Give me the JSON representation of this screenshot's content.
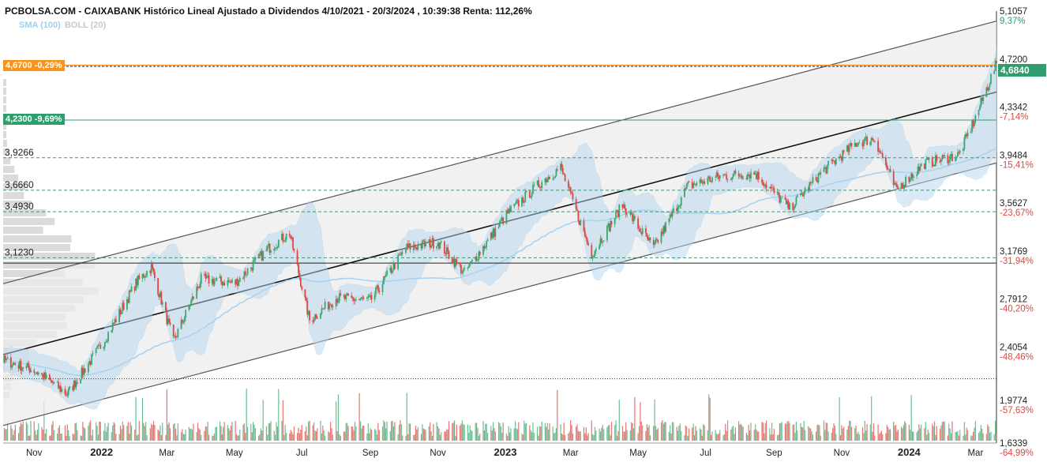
{
  "title": "PCBOLSA.COM - CAIXABANK Histórico Lineal Ajustado a Dividendos 4/10/2021 - 20/3/2024 , 10:39:38 Renta: 112,26%",
  "legend": {
    "sma": "SMA (100)",
    "boll": "BOLL (20)"
  },
  "colors": {
    "orange": "#f7941d",
    "green": "#2e9e6b",
    "blue_dashed": "#2233aa",
    "up": "#3aa870",
    "down": "#e0473f",
    "band": "#b7d7ee",
    "sma": "#a9d3f2",
    "channel": "#2b2b2b",
    "volume_profile": "#d5d5d5"
  },
  "level_labels": {
    "orange_price": "4,6700",
    "orange_pct": "-0,29%",
    "green_price": "4,2300",
    "green_pct": "-9,69%",
    "last_price": "4,6840"
  },
  "chart_data": {
    "type": "candlestick",
    "title": "PCBOLSA.COM - CAIXABANK Histórico Lineal Ajustado a Dividendos 4/10/2021 - 20/3/2024 , 10:39:38 Renta: 112,26%",
    "x_range": [
      "2021-10-04",
      "2024-03-20"
    ],
    "y_range": [
      1.6339,
      5.1057
    ],
    "x_ticks": [
      {
        "date": "2021-11",
        "label": "Nov"
      },
      {
        "date": "2022-01",
        "label": "2022"
      },
      {
        "date": "2022-03",
        "label": "Mar"
      },
      {
        "date": "2022-05",
        "label": "May"
      },
      {
        "date": "2022-07",
        "label": "Jul"
      },
      {
        "date": "2022-09",
        "label": "Sep"
      },
      {
        "date": "2022-11",
        "label": "Nov"
      },
      {
        "date": "2023-01",
        "label": "2023"
      },
      {
        "date": "2023-03",
        "label": "Mar"
      },
      {
        "date": "2023-05",
        "label": "May"
      },
      {
        "date": "2023-07",
        "label": "Jul"
      },
      {
        "date": "2023-09",
        "label": "Sep"
      },
      {
        "date": "2023-11",
        "label": "Nov"
      },
      {
        "date": "2024-01",
        "label": "2024"
      },
      {
        "date": "2024-03",
        "label": "Mar"
      }
    ],
    "y_right_ticks": [
      {
        "price": "5,1057",
        "pct": "9,37%"
      },
      {
        "price": "4,7200",
        "pct": ""
      },
      {
        "price": "4,3342",
        "pct": "-7,14%"
      },
      {
        "price": "3,9484",
        "pct": "-15,41%"
      },
      {
        "price": "3,5627",
        "pct": "-23,67%"
      },
      {
        "price": "3,1769",
        "pct": "-31,94%"
      },
      {
        "price": "2,7912",
        "pct": "-40,20%"
      },
      {
        "price": "2,4054",
        "pct": "-48,46%"
      },
      {
        "price": "1,9774",
        "pct": "-57,63%"
      },
      {
        "price": "1,6339",
        "pct": "-64,99%"
      }
    ],
    "y_left_levels": [
      {
        "label": "3,9266"
      },
      {
        "label": "3,6660"
      },
      {
        "label": "3,4930"
      },
      {
        "label": "3,1230"
      }
    ],
    "close_series": [
      {
        "date": "2021-10-04",
        "close": 2.3
      },
      {
        "date": "2021-11-01",
        "close": 2.22
      },
      {
        "date": "2021-12-01",
        "close": 2.03
      },
      {
        "date": "2022-01-03",
        "close": 2.45
      },
      {
        "date": "2022-02-01",
        "close": 2.92
      },
      {
        "date": "2022-02-15",
        "close": 3.05
      },
      {
        "date": "2022-03-07",
        "close": 2.45
      },
      {
        "date": "2022-04-01",
        "close": 2.95
      },
      {
        "date": "2022-05-02",
        "close": 2.92
      },
      {
        "date": "2022-06-01",
        "close": 3.2
      },
      {
        "date": "2022-06-20",
        "close": 3.32
      },
      {
        "date": "2022-07-08",
        "close": 2.62
      },
      {
        "date": "2022-08-01",
        "close": 2.8
      },
      {
        "date": "2022-09-01",
        "close": 2.78
      },
      {
        "date": "2022-10-03",
        "close": 3.2
      },
      {
        "date": "2022-11-01",
        "close": 3.25
      },
      {
        "date": "2022-11-25",
        "close": 3.0
      },
      {
        "date": "2023-01-03",
        "close": 3.48
      },
      {
        "date": "2023-02-01",
        "close": 3.72
      },
      {
        "date": "2023-02-20",
        "close": 3.85
      },
      {
        "date": "2023-03-20",
        "close": 3.15
      },
      {
        "date": "2023-04-17",
        "close": 3.55
      },
      {
        "date": "2023-05-15",
        "close": 3.2
      },
      {
        "date": "2023-06-15",
        "close": 3.7
      },
      {
        "date": "2023-07-15",
        "close": 3.78
      },
      {
        "date": "2023-08-15",
        "close": 3.8
      },
      {
        "date": "2023-09-15",
        "close": 3.52
      },
      {
        "date": "2023-10-15",
        "close": 3.82
      },
      {
        "date": "2023-11-15",
        "close": 4.05
      },
      {
        "date": "2023-12-01",
        "close": 4.08
      },
      {
        "date": "2023-12-20",
        "close": 3.67
      },
      {
        "date": "2024-01-15",
        "close": 3.88
      },
      {
        "date": "2024-02-15",
        "close": 3.95
      },
      {
        "date": "2024-03-01",
        "close": 4.25
      },
      {
        "date": "2024-03-20",
        "close": 4.684
      }
    ],
    "horizontal_levels": [
      {
        "price": 4.67,
        "label": "4,6700",
        "pct": "-0,29%",
        "style": "dashed"
      },
      {
        "price": 4.23,
        "label": "4,2300",
        "pct": "-9,69%",
        "style": "solid"
      },
      {
        "price": 3.9266,
        "label": "3,9266",
        "style": "dashed"
      },
      {
        "price": 3.666,
        "label": "3,6660",
        "style": "dashed"
      },
      {
        "price": 3.493,
        "label": "3,4930",
        "style": "dashed"
      },
      {
        "price": 3.123,
        "label": "3,1230",
        "style": "dashed"
      },
      {
        "price": 3.08,
        "style": "solid"
      },
      {
        "price": 2.15,
        "style": "dotted"
      }
    ],
    "regression_channel": {
      "start": {
        "date": "2021-10-04",
        "center": 2.345,
        "upper": 2.915,
        "lower": 1.775
      },
      "end": {
        "date": "2024-03-20",
        "center": 4.455,
        "upper": 5.025,
        "lower": 3.885
      }
    },
    "indicators": [
      "SMA (100)",
      "BOLL (20)"
    ],
    "last_price": 4.684,
    "grid": false,
    "legend_position": "top-left"
  }
}
